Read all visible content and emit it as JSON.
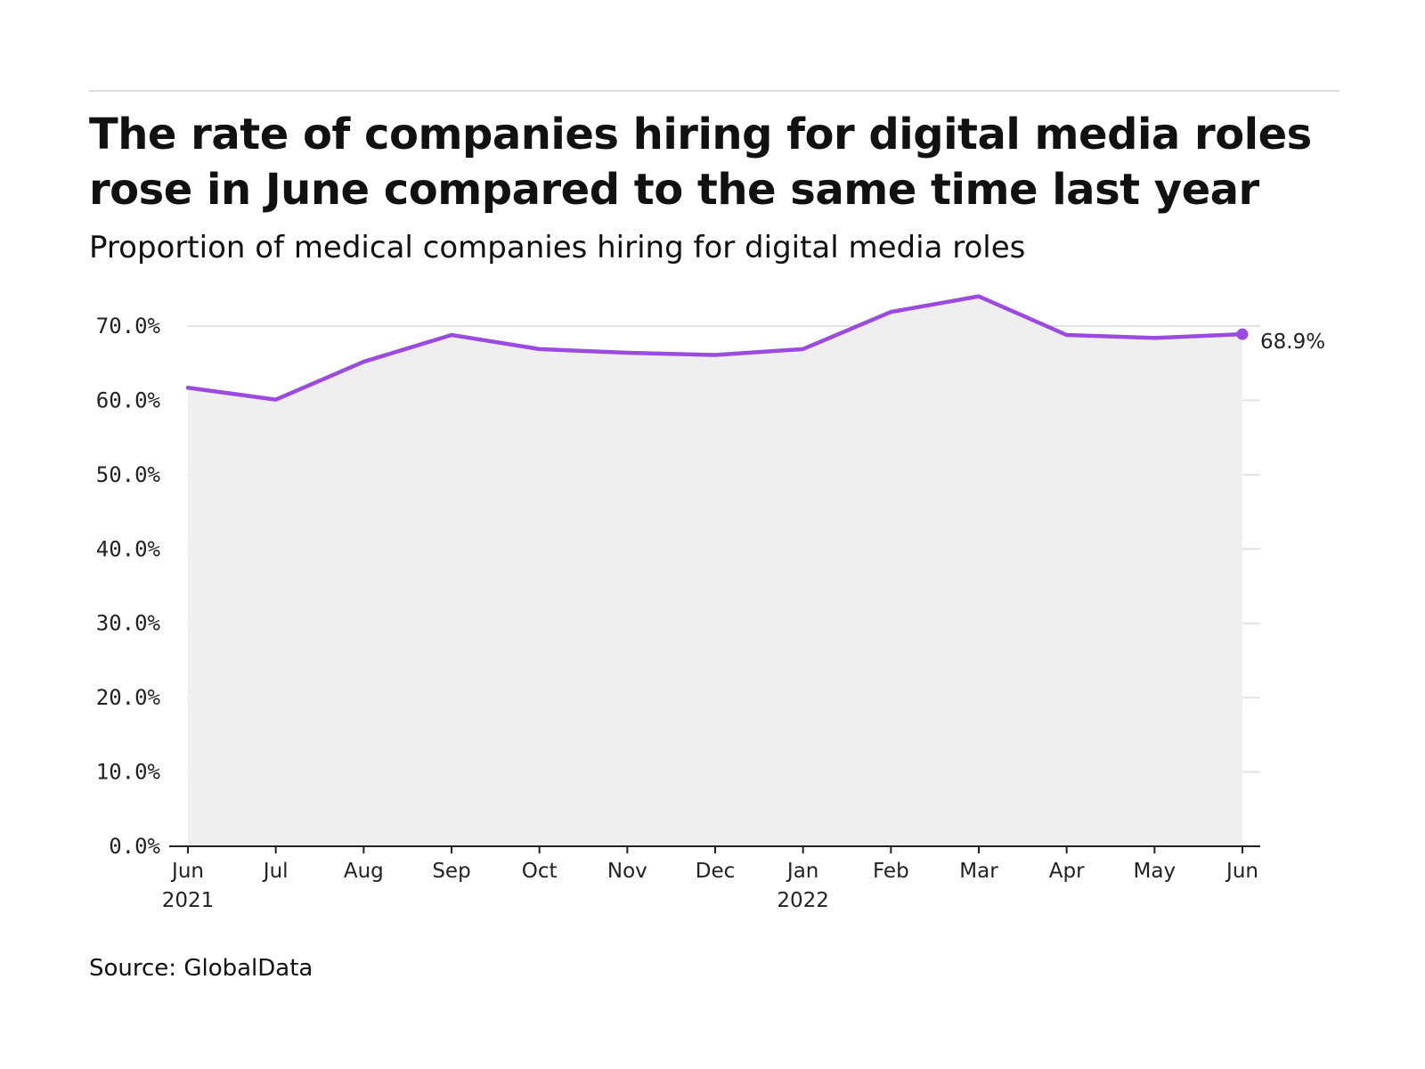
{
  "header": {
    "title": "The rate of companies hiring for digital media roles rose in June compared to the same time last year",
    "subtitle": "Proportion of medical companies hiring for digital media roles"
  },
  "footer": {
    "source": "Source: GlobalData"
  },
  "colors": {
    "line": "#9b4be0",
    "area": "#efefef",
    "grid": "#e2e2e2",
    "axis": "#222222"
  },
  "chart_data": {
    "type": "line",
    "categories": [
      "Jun",
      "Jul",
      "Aug",
      "Sep",
      "Oct",
      "Nov",
      "Dec",
      "Jan",
      "Feb",
      "Mar",
      "Apr",
      "May",
      "Jun"
    ],
    "category_sublabels": [
      "2021",
      "",
      "",
      "",
      "",
      "",
      "",
      "2022",
      "",
      "",
      "",
      "",
      ""
    ],
    "series": [
      {
        "values": [
          61.7,
          60.1,
          65.2,
          68.8,
          66.9,
          66.4,
          66.1,
          66.9,
          71.9,
          74.0,
          68.8,
          68.4,
          68.9
        ]
      }
    ],
    "end_label": "68.9%",
    "ylim": [
      0,
      70
    ],
    "yticks": [
      "0.0%",
      "10.0%",
      "20.0%",
      "30.0%",
      "40.0%",
      "50.0%",
      "60.0%",
      "70.0%"
    ],
    "ytick_values": [
      0,
      10,
      20,
      30,
      40,
      50,
      60,
      70
    ],
    "grid": true,
    "area_fill": true,
    "xlabel": "",
    "ylabel": ""
  }
}
